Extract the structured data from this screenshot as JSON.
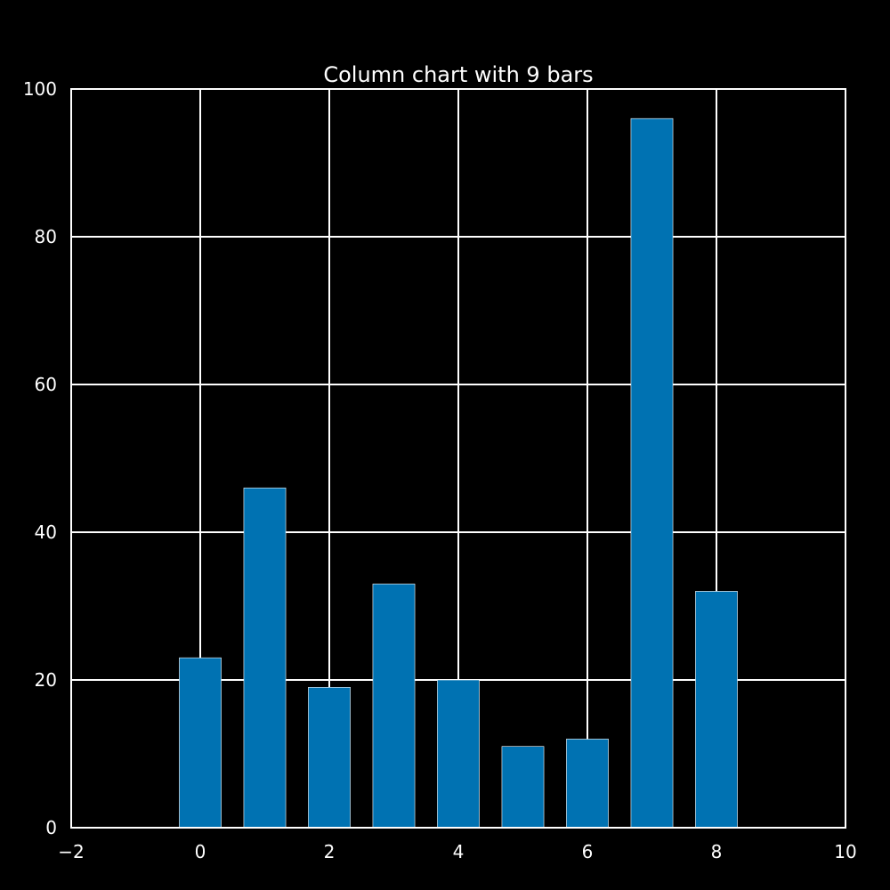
{
  "chart_data": {
    "type": "bar",
    "title": "Column chart with 9 bars",
    "xlabel": "",
    "ylabel": "",
    "x": [
      0,
      1,
      2,
      3,
      4,
      5,
      6,
      7,
      8
    ],
    "values": [
      23,
      46,
      19,
      33,
      20,
      11,
      12,
      96,
      32
    ],
    "xlim": [
      -2,
      10
    ],
    "ylim": [
      0,
      100
    ],
    "xticks": [
      -2,
      0,
      2,
      4,
      6,
      8,
      10
    ],
    "xtick_labels": [
      "−2",
      "0",
      "2",
      "4",
      "6",
      "8",
      "10"
    ],
    "yticks": [
      0,
      20,
      40,
      60,
      80,
      100
    ],
    "ytick_labels": [
      "0",
      "20",
      "40",
      "60",
      "80",
      "100"
    ],
    "grid": true,
    "bar_color": "#0072b2",
    "background_color": "#000000",
    "foreground_color": "#ffffff"
  }
}
